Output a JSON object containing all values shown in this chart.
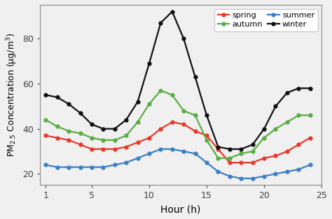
{
  "hours": [
    1,
    2,
    3,
    4,
    5,
    6,
    7,
    8,
    9,
    10,
    11,
    12,
    13,
    14,
    15,
    16,
    17,
    18,
    19,
    20,
    21,
    22,
    23,
    24
  ],
  "spring": [
    37,
    36,
    35,
    33,
    31,
    31,
    31,
    32,
    34,
    36,
    40,
    43,
    42,
    39,
    37,
    31,
    25,
    25,
    25,
    27,
    28,
    30,
    33,
    36
  ],
  "summer": [
    24,
    23,
    23,
    23,
    23,
    23,
    24,
    25,
    27,
    29,
    31,
    31,
    30,
    29,
    25,
    21,
    19,
    18,
    18,
    19,
    20,
    21,
    22,
    24
  ],
  "autumn": [
    44,
    41,
    39,
    38,
    36,
    35,
    35,
    37,
    43,
    51,
    57,
    55,
    48,
    46,
    35,
    27,
    27,
    29,
    30,
    36,
    40,
    43,
    46,
    46
  ],
  "winter": [
    55,
    54,
    51,
    47,
    42,
    40,
    40,
    44,
    52,
    69,
    87,
    92,
    80,
    63,
    46,
    32,
    31,
    31,
    33,
    40,
    50,
    56,
    58,
    58
  ],
  "colors": {
    "spring": "#e8392b",
    "summer": "#3b7fc4",
    "autumn": "#5aac44",
    "winter": "#111111"
  },
  "ylabel": "PM$_{2.5}$ Concentration (μg/m$^3$)",
  "xlabel": "Hour (h)",
  "ylim": [
    15,
    95
  ],
  "xlim": [
    0.5,
    25
  ],
  "xticks": [
    1,
    5,
    10,
    15,
    20,
    25
  ],
  "yticks": [
    20,
    40,
    60,
    80
  ],
  "legend_order": [
    "spring",
    "autumn",
    "summer",
    "winter"
  ],
  "bg_color": "#f0f0f0"
}
